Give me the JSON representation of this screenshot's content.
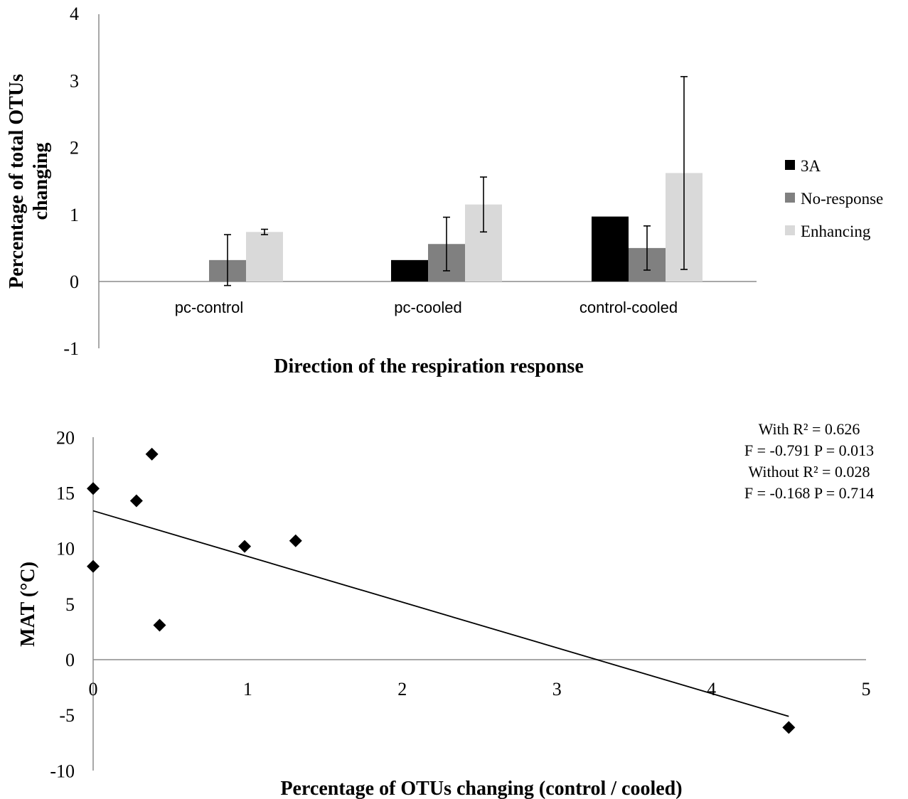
{
  "chart_data": [
    {
      "type": "bar",
      "title": "",
      "xlabel": "Direction of the respiration response",
      "ylabel_line1": "Percentage of total OTUs",
      "ylabel_line2": "changing",
      "ylim": [
        -1,
        4
      ],
      "yticks": [
        "-1",
        "0",
        "1",
        "2",
        "3",
        "4"
      ],
      "categories": [
        "pc-control",
        "pc-cooled",
        "control-cooled"
      ],
      "legend_position": "right",
      "grid": false,
      "series": [
        {
          "name": "3A",
          "color": "#000000",
          "values": [
            0,
            0.32,
            0.97
          ],
          "errors": [
            null,
            null,
            null
          ]
        },
        {
          "name": "No-response",
          "color": "#808080",
          "values": [
            0.32,
            0.56,
            0.5
          ],
          "errors": [
            0.38,
            0.4,
            0.33
          ]
        },
        {
          "name": "Enhancing",
          "color": "#d9d9d9",
          "values": [
            0.74,
            1.15,
            1.62
          ],
          "errors": [
            0.04,
            0.41,
            1.44
          ]
        }
      ]
    },
    {
      "type": "scatter",
      "title": "",
      "xlabel": "Percentage of OTUs changing (control / cooled)",
      "ylabel": "MAT (°C)",
      "xlim": [
        0,
        5
      ],
      "ylim": [
        -10,
        20
      ],
      "xticks": [
        "0",
        "1",
        "2",
        "3",
        "4",
        "5"
      ],
      "yticks": [
        "-10",
        "-5",
        "0",
        "5",
        "10",
        "15",
        "20"
      ],
      "grid": false,
      "points": [
        {
          "x": 0.0,
          "y": 15.4
        },
        {
          "x": 0.0,
          "y": 8.4
        },
        {
          "x": 0.28,
          "y": 14.3
        },
        {
          "x": 0.38,
          "y": 18.5
        },
        {
          "x": 0.43,
          "y": 3.1
        },
        {
          "x": 0.98,
          "y": 10.2
        },
        {
          "x": 1.31,
          "y": 10.7
        },
        {
          "x": 4.5,
          "y": -6.1
        }
      ],
      "trendline": {
        "x_start": 0.0,
        "y_start": 13.4,
        "x_end": 4.5,
        "y_end": -5.1
      },
      "annotations": [
        "With R² = 0.626",
        "F = -0.791 P = 0.013",
        "Without R² = 0.028",
        "F = -0.168 P = 0.714"
      ]
    }
  ]
}
